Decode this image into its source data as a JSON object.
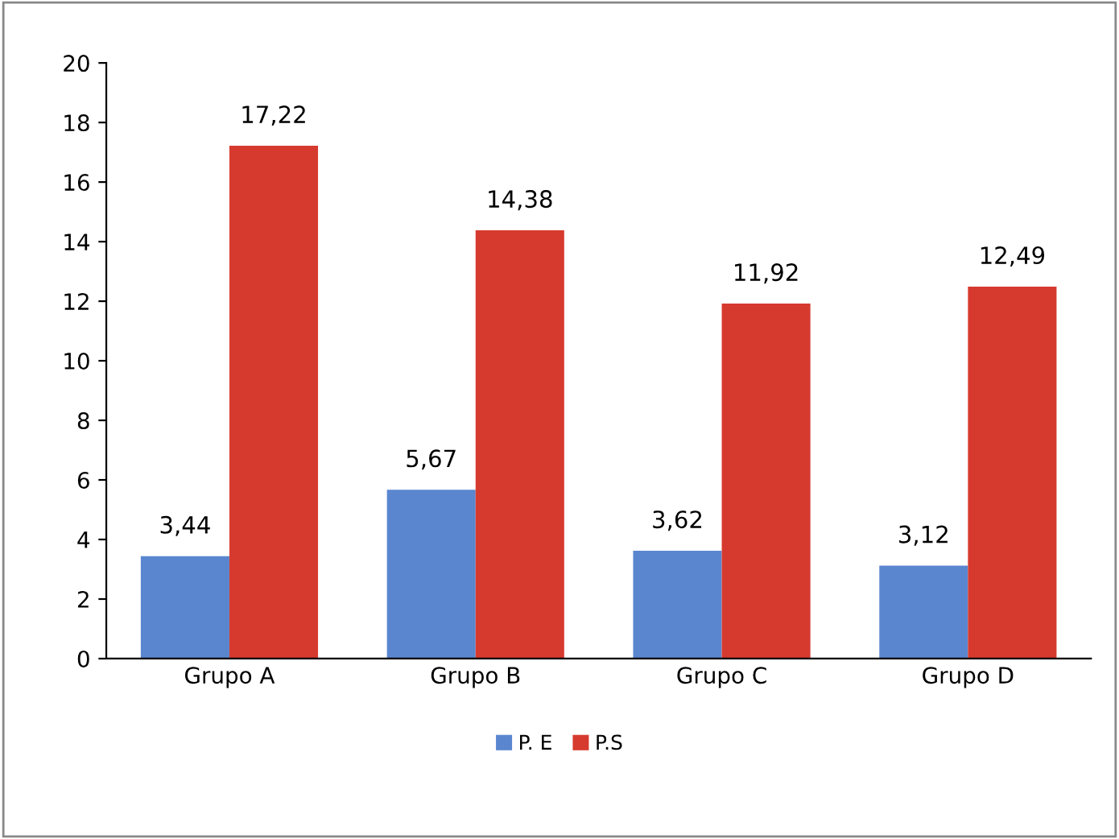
{
  "chart_data": {
    "type": "bar",
    "categories": [
      "Grupo A",
      "Grupo B",
      "Grupo C",
      "Grupo D"
    ],
    "series": [
      {
        "name": "P. E",
        "color": "#5a86cf",
        "values": [
          3.44,
          5.67,
          3.62,
          3.12
        ],
        "value_labels": [
          "3,44",
          "5,67",
          "3,62",
          "3,12"
        ]
      },
      {
        "name": "P.S",
        "color": "#d63a2e",
        "values": [
          17.22,
          14.38,
          11.92,
          12.49
        ],
        "value_labels": [
          "17,22",
          "14,38",
          "11,92",
          "12,49"
        ]
      }
    ],
    "ylim": [
      0,
      20
    ],
    "yticks": [
      0,
      2,
      4,
      6,
      8,
      10,
      12,
      14,
      16,
      18,
      20
    ],
    "grid": false,
    "legend": "bottom"
  }
}
